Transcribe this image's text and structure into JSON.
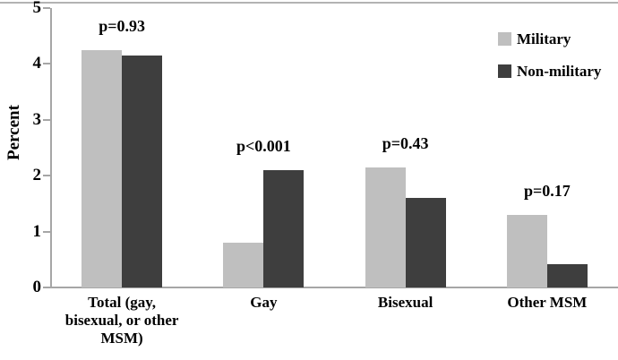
{
  "chart_data": {
    "type": "bar",
    "title": "",
    "xlabel": "",
    "ylabel": "Percent",
    "ylim": [
      0,
      5
    ],
    "yticks": [
      0,
      1,
      2,
      3,
      4,
      5
    ],
    "grid": false,
    "legend_position": "top-right",
    "categories": [
      "Total (gay,\nbisexual, or other\nMSM)",
      "Gay",
      "Bisexual",
      "Other MSM"
    ],
    "series": [
      {
        "name": "Military",
        "color": "#bfbfbf",
        "values": [
          4.25,
          0.8,
          2.15,
          1.3
        ]
      },
      {
        "name": "Non-military",
        "color": "#3e3e3e",
        "values": [
          4.15,
          2.1,
          1.6,
          0.42
        ]
      }
    ],
    "annotations": [
      "p=0.93",
      "p<0.001",
      "p=0.43",
      "p=0.17"
    ],
    "colors": {
      "axis": "#a6a6a6",
      "military_bar": "#bfbfbf",
      "non_military_bar": "#3e3e3e",
      "text": "#000000",
      "top_rule": "#b3b3b3"
    }
  }
}
